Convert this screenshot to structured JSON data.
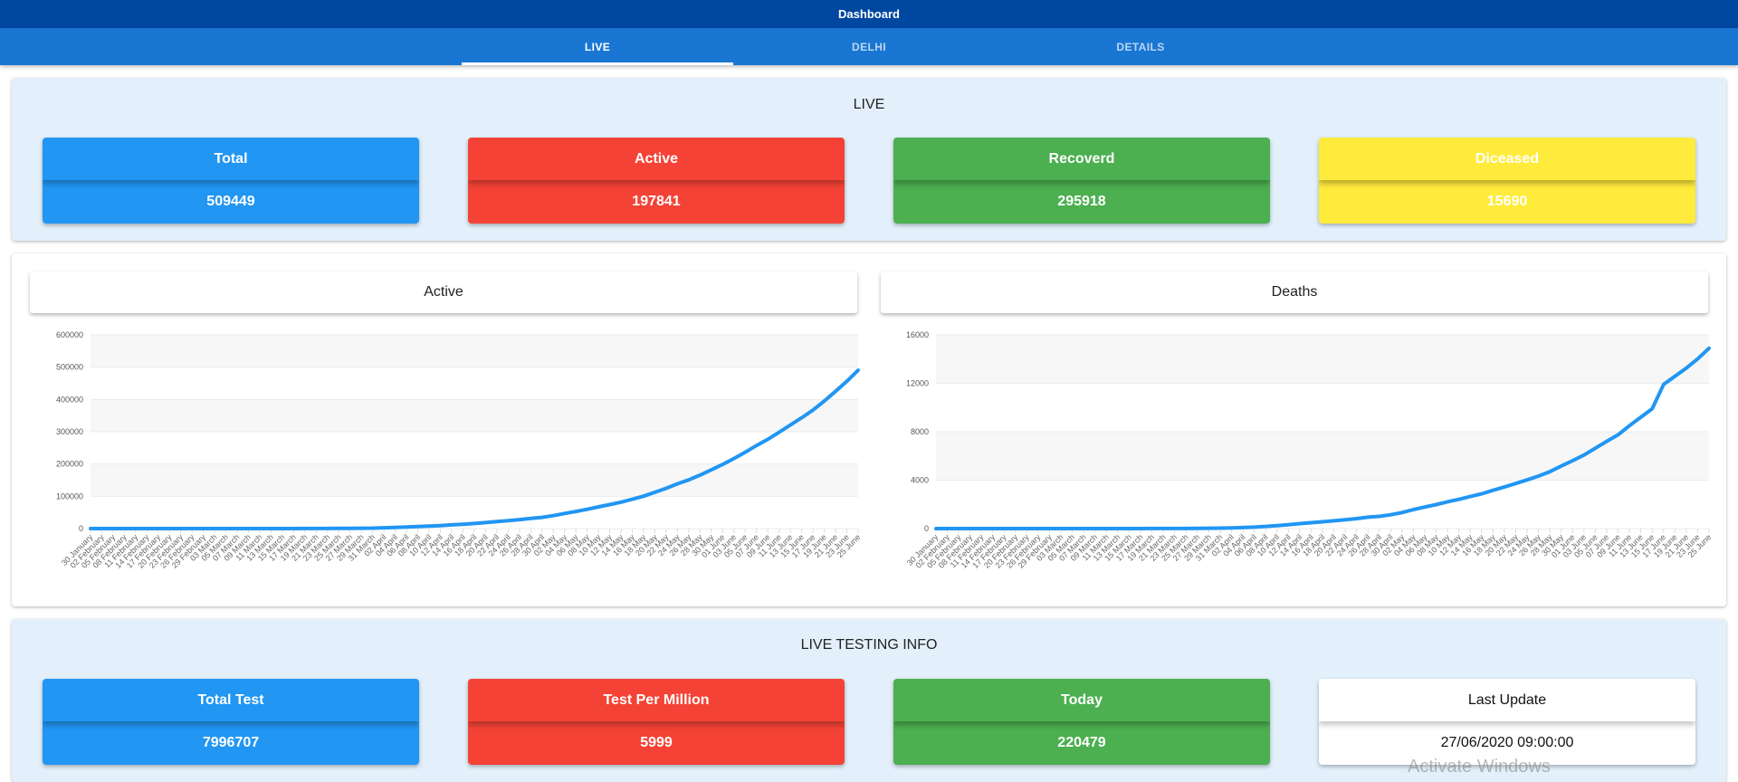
{
  "app": {
    "title": "Dashboard"
  },
  "tabs": [
    {
      "label": "LIVE",
      "active": true
    },
    {
      "label": "DELHI",
      "active": false
    },
    {
      "label": "DETAILS",
      "active": false
    }
  ],
  "live": {
    "title": "LIVE",
    "cards": [
      {
        "label": "Total",
        "value": "509449",
        "color": "#2196f3",
        "value_color": "#2196f3"
      },
      {
        "label": "Active",
        "value": "197841",
        "color": "#f44336",
        "value_color": "#f44336"
      },
      {
        "label": "Recoverd",
        "value": "295918",
        "color": "#4caf50",
        "value_color": "#4caf50"
      },
      {
        "label": "Diceased",
        "value": "15690",
        "color": "#ffeb3b",
        "value_color": "#ffeb3b"
      }
    ]
  },
  "charts": {
    "active_title": "Active",
    "deaths_title": "Deaths"
  },
  "chart_data": [
    {
      "type": "line",
      "title": "Active",
      "xlabel": "",
      "ylabel": "",
      "ylim": [
        0,
        600000
      ],
      "yticks": [
        0,
        100000,
        200000,
        300000,
        400000,
        500000,
        600000
      ],
      "grid": true,
      "line_color": "#2196f3",
      "categories": [
        "30 January",
        "02 February",
        "05 February",
        "08 February",
        "11 February",
        "14 February",
        "17 February",
        "20 February",
        "23 February",
        "26 February",
        "29 February",
        "03 March",
        "05 March",
        "07 March",
        "09 March",
        "11 March",
        "13 March",
        "15 March",
        "17 March",
        "19 March",
        "21 March",
        "23 March",
        "25 March",
        "27 March",
        "29 March",
        "31 March",
        "02 April",
        "04 April",
        "06 April",
        "08 April",
        "10 April",
        "12 April",
        "14 April",
        "16 April",
        "18 April",
        "20 April",
        "22 April",
        "24 April",
        "26 April",
        "28 April",
        "30 April",
        "02 May",
        "04 May",
        "06 May",
        "08 May",
        "10 May",
        "12 May",
        "14 May",
        "16 May",
        "18 May",
        "20 May",
        "22 May",
        "24 May",
        "26 May",
        "28 May",
        "30 May",
        "01 June",
        "03 June",
        "05 June",
        "07 June",
        "09 June",
        "11 June",
        "13 June",
        "15 June",
        "17 June",
        "19 June",
        "21 June",
        "23 June",
        "25 June"
      ],
      "values": [
        1,
        2,
        3,
        3,
        3,
        3,
        3,
        3,
        3,
        3,
        3,
        5,
        30,
        31,
        43,
        62,
        81,
        110,
        137,
        194,
        283,
        415,
        606,
        887,
        1071,
        1397,
        2543,
        3577,
        4778,
        6412,
        7598,
        9205,
        11439,
        13430,
        15712,
        18539,
        21797,
        24530,
        27892,
        31787,
        34863,
        39980,
        46711,
        53045,
        59662,
        67161,
        74281,
        81970,
        90927,
        100328,
        112359,
        124794,
        138845,
        150793,
        165799,
        181827,
        198706,
        216919,
        236657,
        257486,
        276583,
        298283,
        320922,
        343091,
        366946,
        395048,
        425282,
        456183,
        490401
      ]
    },
    {
      "type": "line",
      "title": "Deaths",
      "xlabel": "",
      "ylabel": "",
      "ylim": [
        0,
        16000
      ],
      "yticks": [
        0,
        4000,
        8000,
        12000,
        16000
      ],
      "grid": true,
      "line_color": "#2196f3",
      "categories": [
        "30 January",
        "02 February",
        "05 February",
        "08 February",
        "11 February",
        "14 February",
        "17 February",
        "20 February",
        "23 February",
        "26 February",
        "29 February",
        "03 March",
        "05 March",
        "07 March",
        "09 March",
        "11 March",
        "13 March",
        "15 March",
        "17 March",
        "19 March",
        "21 March",
        "23 March",
        "25 March",
        "27 March",
        "29 March",
        "31 March",
        "02 April",
        "04 April",
        "06 April",
        "08 April",
        "10 April",
        "12 April",
        "14 April",
        "16 April",
        "18 April",
        "20 April",
        "22 April",
        "24 April",
        "26 April",
        "28 April",
        "30 April",
        "02 May",
        "04 May",
        "06 May",
        "08 May",
        "10 May",
        "12 May",
        "14 May",
        "16 May",
        "18 May",
        "20 May",
        "22 May",
        "24 May",
        "26 May",
        "28 May",
        "30 May",
        "01 June",
        "03 June",
        "05 June",
        "07 June",
        "09 June",
        "11 June",
        "13 June",
        "15 June",
        "17 June",
        "19 June",
        "21 June",
        "23 June",
        "25 June"
      ],
      "values": [
        0,
        0,
        0,
        0,
        0,
        0,
        0,
        0,
        0,
        0,
        0,
        0,
        0,
        0,
        0,
        1,
        2,
        2,
        3,
        4,
        4,
        7,
        10,
        20,
        29,
        35,
        58,
        83,
        118,
        178,
        242,
        325,
        414,
        488,
        559,
        640,
        722,
        824,
        939,
        1008,
        1147,
        1323,
        1568,
        1783,
        1981,
        2212,
        2415,
        2649,
        2871,
        3163,
        3435,
        3720,
        4021,
        4337,
        4706,
        5164,
        5608,
        6075,
        6642,
        7207,
        7745,
        8498,
        9195,
        9900,
        11903,
        12573,
        13254,
        14011,
        14894
      ]
    }
  ],
  "testing": {
    "title": "LIVE TESTING INFO",
    "cards": [
      {
        "label": "Total Test",
        "value": "7996707",
        "color": "#2196f3"
      },
      {
        "label": "Test Per Million",
        "value": "5999",
        "color": "#f44336"
      },
      {
        "label": "Today",
        "value": "220479",
        "color": "#4caf50"
      },
      {
        "label": "Last Update",
        "value": "27/06/2020 09:00:00",
        "color": "#ffffff"
      }
    ]
  },
  "watermark": "Activate Windows"
}
